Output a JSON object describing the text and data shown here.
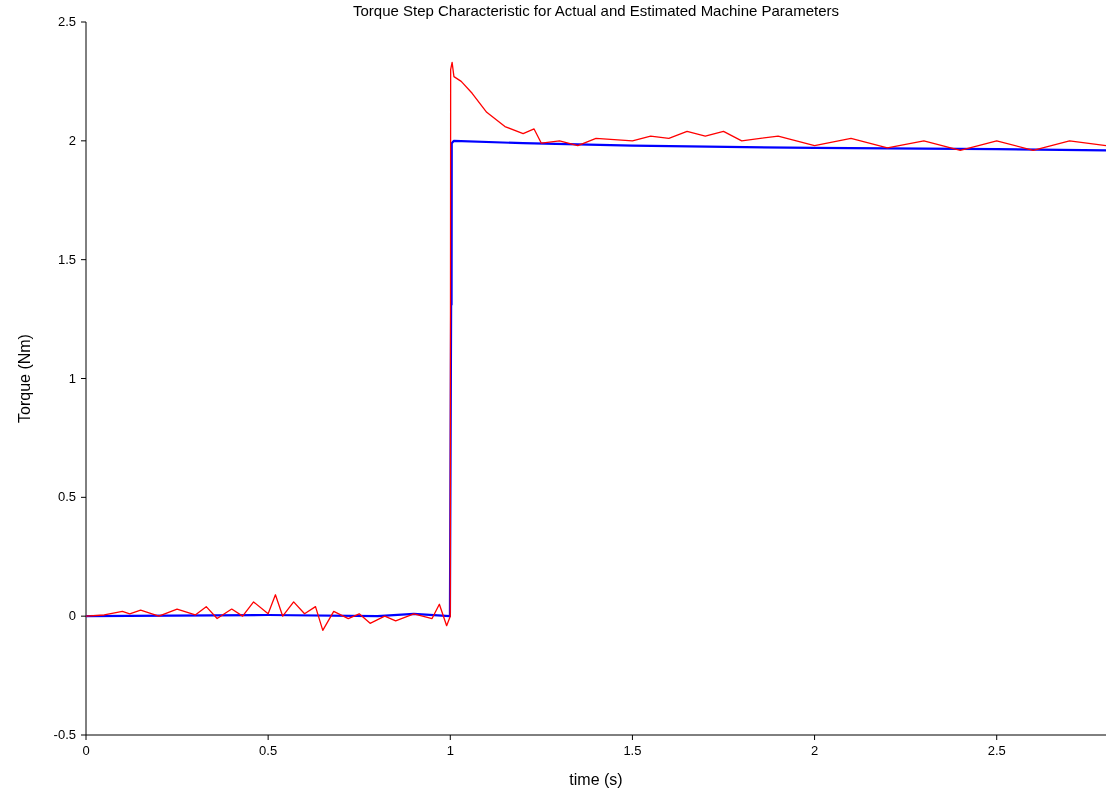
{
  "chart_data": {
    "type": "line",
    "title": "Torque Step Characteristic for Actual and Estimated Machine Parameters",
    "xlabel": "time (s)",
    "ylabel": "Torque (Nm)",
    "xlim": [
      0,
      2.8
    ],
    "xticks": [
      0,
      0.5,
      1,
      1.5,
      2,
      2.5
    ],
    "ylim": [
      -0.5,
      2.5
    ],
    "yticks": [
      -0.5,
      0,
      0.5,
      1,
      1.5,
      2,
      2.5
    ],
    "grid": false,
    "line_style": "solid",
    "marker": "none",
    "series": [
      {
        "color": "#0000ff",
        "x": [
          0,
          0.5,
          0.8,
          0.9,
          0.999,
          1.003,
          1.0035,
          1.004,
          1.01,
          1.2,
          1.5,
          2.0,
          2.5,
          2.8
        ],
        "values": [
          0,
          0.005,
          0,
          0.01,
          0,
          1.57,
          1.31,
          1.99,
          2.0,
          1.99,
          1.98,
          1.97,
          1.965,
          1.96
        ]
      },
      {
        "color": "#ff0000",
        "x": [
          0,
          0.05,
          0.1,
          0.12,
          0.15,
          0.2,
          0.25,
          0.3,
          0.33,
          0.36,
          0.4,
          0.43,
          0.46,
          0.5,
          0.52,
          0.54,
          0.57,
          0.6,
          0.63,
          0.65,
          0.68,
          0.72,
          0.75,
          0.78,
          0.82,
          0.85,
          0.9,
          0.95,
          0.97,
          0.99,
          1.0,
          1.001,
          1.005,
          1.01,
          1.03,
          1.06,
          1.1,
          1.15,
          1.2,
          1.23,
          1.25,
          1.3,
          1.35,
          1.4,
          1.5,
          1.55,
          1.6,
          1.65,
          1.7,
          1.75,
          1.8,
          1.9,
          2.0,
          2.1,
          2.2,
          2.3,
          2.4,
          2.5,
          2.6,
          2.7,
          2.8
        ],
        "values": [
          0,
          0.005,
          0.02,
          0.01,
          0.025,
          0,
          0.03,
          0.005,
          0.04,
          -0.01,
          0.03,
          0,
          0.06,
          0.01,
          0.09,
          0,
          0.06,
          0.01,
          0.04,
          -0.06,
          0.02,
          -0.01,
          0.01,
          -0.03,
          0,
          -0.02,
          0.01,
          -0.01,
          0.05,
          -0.04,
          0,
          2.3,
          2.33,
          2.27,
          2.25,
          2.2,
          2.12,
          2.06,
          2.03,
          2.05,
          1.99,
          2.0,
          1.98,
          2.01,
          2.0,
          2.02,
          2.01,
          2.04,
          2.02,
          2.04,
          2.0,
          2.02,
          1.98,
          2.01,
          1.97,
          2.0,
          1.96,
          2.0,
          1.96,
          2.0,
          1.98
        ]
      }
    ]
  }
}
